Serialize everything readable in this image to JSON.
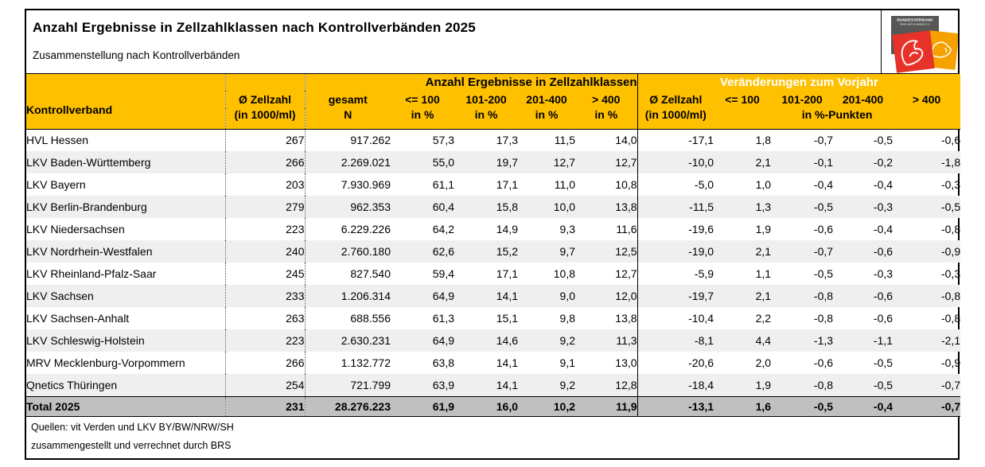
{
  "page": {
    "title": "Anzahl Ergebnisse in Zellzahlklassen nach Kontrollverbänden 2025",
    "subtitle": "Zusammenstellung nach Kontrollverbänden"
  },
  "logo": {
    "line1": "BUNDESVERBAND",
    "line2": "RIND UND SCHWEIN E.V."
  },
  "table": {
    "section_headers": {
      "anzahl": "Anzahl Ergebnisse in Zellzahlklassen",
      "veraenderungen": "Veränderungen zum Vorjahr"
    },
    "columns": [
      {
        "label": "Kontrollverband",
        "sub": ""
      },
      {
        "label": "Ø Zellzahl",
        "sub": "(in 1000/ml)"
      },
      {
        "label": "gesamt",
        "sub": "N"
      },
      {
        "label": "<= 100",
        "sub": "in %"
      },
      {
        "label": "101-200",
        "sub": "in %"
      },
      {
        "label": "201-400",
        "sub": "in %"
      },
      {
        "label": "> 400",
        "sub": "in %"
      },
      {
        "label": "Ø Zellzahl",
        "sub": "(in 1000/ml)"
      },
      {
        "label": "<= 100"
      },
      {
        "label": "101-200"
      },
      {
        "label": "201-400"
      },
      {
        "label": "> 400"
      }
    ],
    "pct_punkte_label": "in %-Punkten",
    "rows": [
      [
        "HVL Hessen",
        "267",
        "917.262",
        "57,3",
        "17,3",
        "11,5",
        "14,0",
        "-17,1",
        "1,8",
        "-0,7",
        "-0,5",
        "-0,6"
      ],
      [
        "LKV Baden-Württemberg",
        "266",
        "2.269.021",
        "55,0",
        "19,7",
        "12,7",
        "12,7",
        "-10,0",
        "2,1",
        "-0,1",
        "-0,2",
        "-1,8"
      ],
      [
        "LKV Bayern",
        "203",
        "7.930.969",
        "61,1",
        "17,1",
        "11,0",
        "10,8",
        "-5,0",
        "1,0",
        "-0,4",
        "-0,4",
        "-0,3"
      ],
      [
        "LKV Berlin-Brandenburg",
        "279",
        "962.353",
        "60,4",
        "15,8",
        "10,0",
        "13,8",
        "-11,5",
        "1,3",
        "-0,5",
        "-0,3",
        "-0,5"
      ],
      [
        "LKV Niedersachsen",
        "223",
        "6.229.226",
        "64,2",
        "14,9",
        "9,3",
        "11,6",
        "-19,6",
        "1,9",
        "-0,6",
        "-0,4",
        "-0,8"
      ],
      [
        "LKV Nordrhein-Westfalen",
        "240",
        "2.760.180",
        "62,6",
        "15,2",
        "9,7",
        "12,5",
        "-19,0",
        "2,1",
        "-0,7",
        "-0,6",
        "-0,9"
      ],
      [
        "LKV Rheinland-Pfalz-Saar",
        "245",
        "827.540",
        "59,4",
        "17,1",
        "10,8",
        "12,7",
        "-5,9",
        "1,1",
        "-0,5",
        "-0,3",
        "-0,3"
      ],
      [
        "LKV Sachsen",
        "233",
        "1.206.314",
        "64,9",
        "14,1",
        "9,0",
        "12,0",
        "-19,7",
        "2,1",
        "-0,8",
        "-0,6",
        "-0,8"
      ],
      [
        "LKV Sachsen-Anhalt",
        "263",
        "688.556",
        "61,3",
        "15,1",
        "9,8",
        "13,8",
        "-10,4",
        "2,2",
        "-0,8",
        "-0,6",
        "-0,8"
      ],
      [
        "LKV Schleswig-Holstein",
        "223",
        "2.630.231",
        "64,9",
        "14,6",
        "9,2",
        "11,3",
        "-8,1",
        "4,4",
        "-1,3",
        "-1,1",
        "-2,1"
      ],
      [
        "MRV Mecklenburg-Vorpommern",
        "266",
        "1.132.772",
        "63,8",
        "14,1",
        "9,1",
        "13,0",
        "-20,6",
        "2,0",
        "-0,6",
        "-0,5",
        "-0,9"
      ],
      [
        "Qnetics Thüringen",
        "254",
        "721.799",
        "63,9",
        "14,1",
        "9,2",
        "12,8",
        "-18,4",
        "1,9",
        "-0,8",
        "-0,5",
        "-0,7"
      ]
    ],
    "total": [
      "Total 2025",
      "231",
      "28.276.223",
      "61,9",
      "16,0",
      "10,2",
      "11,9",
      "-13,1",
      "1,6",
      "-0,5",
      "-0,4",
      "-0,7"
    ]
  },
  "footer": {
    "line1": "Quellen: vit Verden und LKV BY/BW/NRW/SH",
    "line2": "zusammengestellt und verrechnet durch BRS"
  },
  "colors": {
    "header_orange": "#FFC000",
    "row_alt_gray": "#EFEFEF",
    "total_row_gray": "#C0C0C0",
    "logo_red": "#E63229",
    "logo_orange": "#F5A200",
    "logo_gray": "#575756"
  }
}
